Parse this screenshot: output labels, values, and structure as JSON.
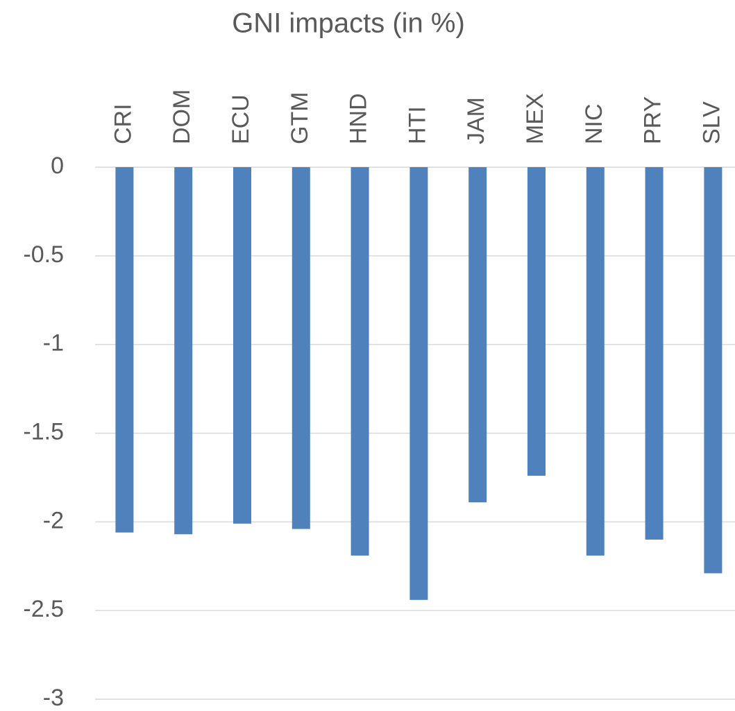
{
  "chart_data": {
    "type": "bar",
    "title": "GNI impacts (in %)",
    "categories": [
      "CRI",
      "DOM",
      "ECU",
      "GTM",
      "HND",
      "HTI",
      "JAM",
      "MEX",
      "NIC",
      "PRY",
      "SLV"
    ],
    "values": [
      -2.06,
      -2.07,
      -2.01,
      -2.04,
      -2.19,
      -2.44,
      -1.89,
      -1.74,
      -2.19,
      -2.1,
      -2.29
    ],
    "color": "#4f81bd",
    "ylim": [
      -3,
      0
    ],
    "yticks": [
      0,
      -0.5,
      -1,
      -1.5,
      -2,
      -2.5,
      -3
    ],
    "grid": true
  }
}
